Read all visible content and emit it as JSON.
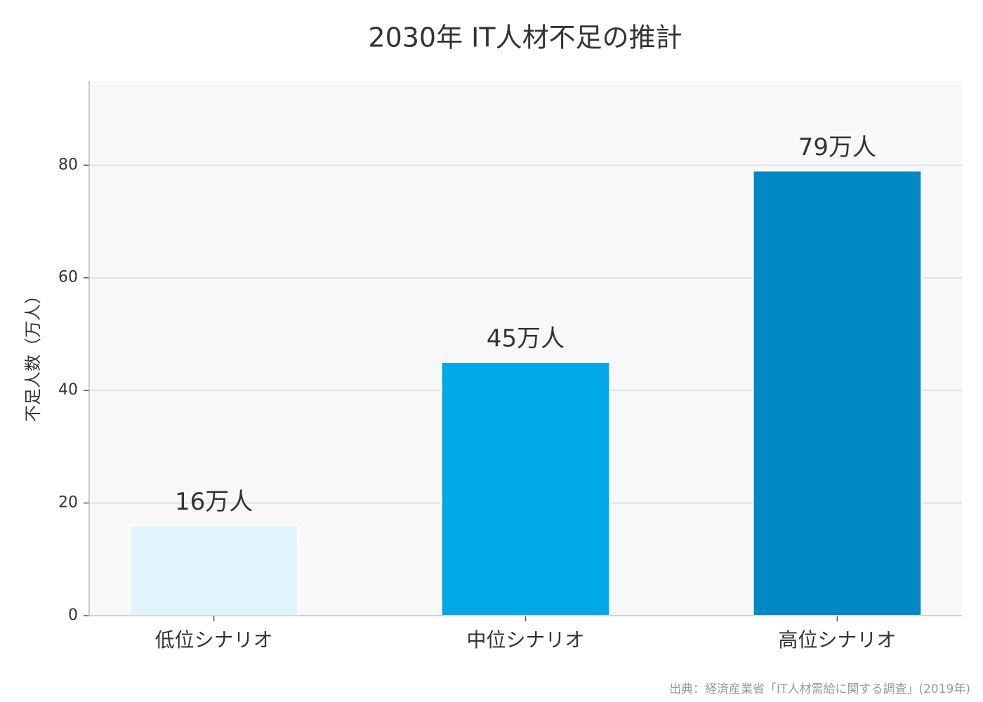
{
  "chart_data": {
    "type": "bar",
    "title": "2030年 IT人材不足の推計",
    "ylabel": "不足人数（万人）",
    "categories": [
      "低位シナリオ",
      "中位シナリオ",
      "高位シナリオ"
    ],
    "values": [
      16,
      45,
      79
    ],
    "value_labels": [
      "16万人",
      "45万人",
      "79万人"
    ],
    "colors": [
      "#e0f4fc",
      "#00a8e8",
      "#0089c4"
    ],
    "ylim": [
      0,
      95
    ],
    "yticks": [
      0,
      20,
      40,
      60,
      80
    ],
    "grid": true,
    "source": "出典：経済産業省「IT人材需給に関する調査」(2019年)"
  }
}
